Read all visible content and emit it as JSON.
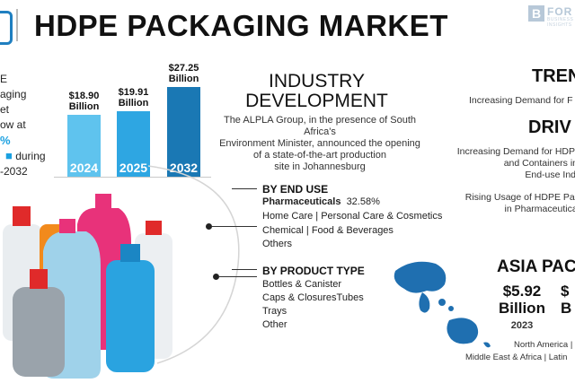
{
  "header": {
    "title": "HDPE PACKAGING MARKET",
    "logo_text": "FOR",
    "logo_sub": "BUSINESS INSIGHTS"
  },
  "intro": {
    "lines": [
      "E",
      "aging",
      "et",
      "ow at",
      "%",
      "during",
      "-2032"
    ]
  },
  "chart_data": {
    "type": "bar",
    "categories": [
      "2024",
      "2025",
      "2032"
    ],
    "values": [
      18.9,
      19.91,
      27.25
    ],
    "value_labels": [
      "$18.90 Billion",
      "$19.91 Billion",
      "$27.25 Billion"
    ],
    "value_top": [
      "$18.90",
      "$19.91",
      "$27.25"
    ],
    "value_bottom": [
      "Billion",
      "Billion",
      "Billion"
    ],
    "colors": [
      "#5fc3ee",
      "#2ea6e2",
      "#1a78b4"
    ],
    "title": "",
    "xlabel": "",
    "ylabel": "",
    "grid": false,
    "legend": "none"
  },
  "industry": {
    "heading_1": "INDUSTRY",
    "heading_2": "DEVELOPMENT",
    "lines": [
      "The ALPLA Group, in the presence of South Africa's",
      "Environment Minister, announced the opening",
      "of a state-of-the-art production",
      "site in Johannesburg"
    ]
  },
  "segments": {
    "end_use": {
      "heading": "BY END USE",
      "highlight_name": "Pharmaceuticals",
      "highlight_value": "32.58%",
      "items": [
        "Home Care  |  Personal Care & Cosmetics",
        "Chemical  |  Food & Beverages",
        "Others"
      ]
    },
    "product_type": {
      "heading": "BY PRODUCT TYPE",
      "items": [
        "Bottles & Canister",
        "Caps & ClosuresTubes",
        "Trays",
        "Other"
      ]
    }
  },
  "trends": {
    "heading": "TREN",
    "text": "Increasing Demand for F"
  },
  "drivers": {
    "heading": "DRIV",
    "lines": [
      "Increasing Demand for HDPE",
      "and Containers in",
      "End-use Ind",
      "Rising Usage of HDPE Pac",
      "in Pharmaceutical"
    ]
  },
  "region": {
    "heading": "ASIA PAC",
    "value_1": "$5.92",
    "unit_1": "Billion",
    "year_1": "2023",
    "value_2": "$",
    "unit_2": "B",
    "regions_line_1": "North America  |",
    "regions_line_2": "Middle East & Africa  |  Latin"
  },
  "colors": {
    "accent": "#1aa0e0",
    "map": "#1f6fb0"
  }
}
